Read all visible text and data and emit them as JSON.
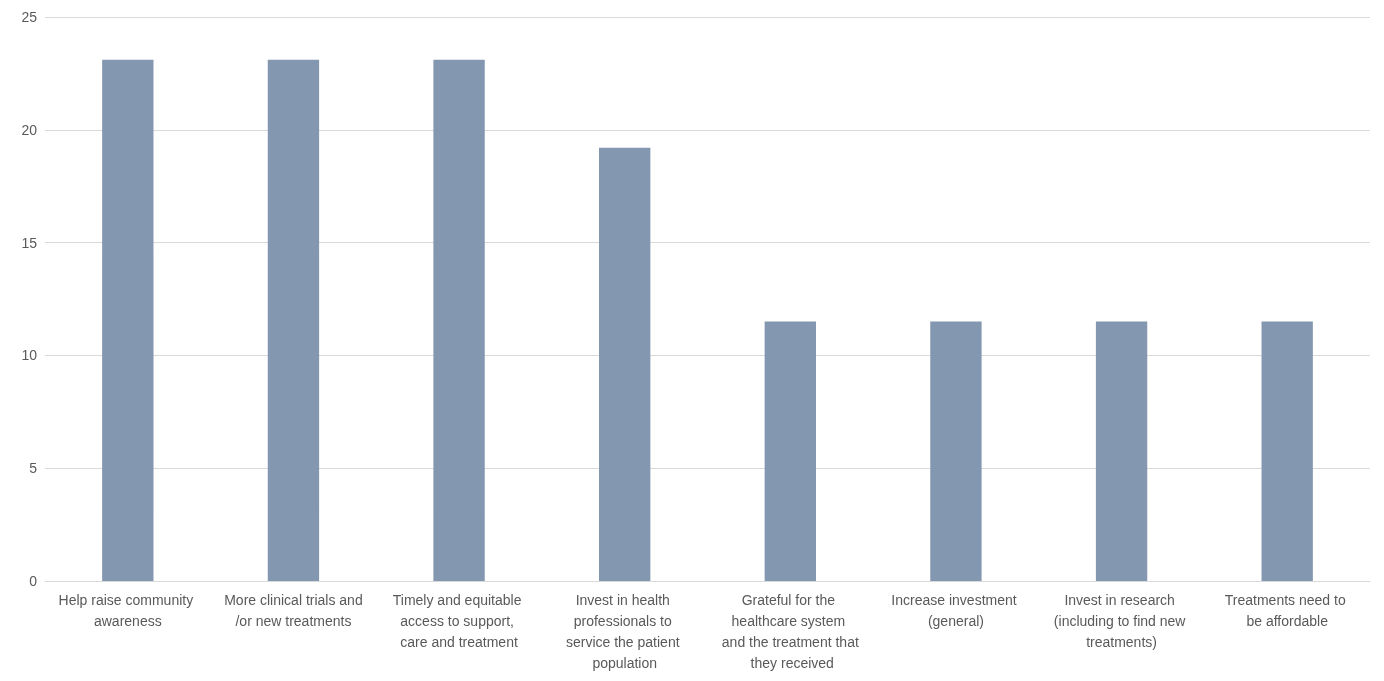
{
  "chart_data": {
    "type": "bar",
    "categories": [
      "Help raise community awareness",
      "More clinical trials and/or new treatments",
      "Timely and equitable access to support, care and treatment",
      "Invest in health professionals to service the patient population",
      "Grateful for the healthcare system and the treatment that they received",
      "Increase investment (general)",
      "Invest in research (including to find new treatments)",
      "Treatments need to be affordable"
    ],
    "values": [
      23.1,
      23.1,
      23.1,
      19.2,
      11.5,
      11.5,
      11.5,
      11.5
    ],
    "color": "#8497b0",
    "ylim": [
      0,
      25
    ],
    "yticks": [
      0,
      5,
      10,
      15,
      20,
      25
    ],
    "grid": "y"
  }
}
